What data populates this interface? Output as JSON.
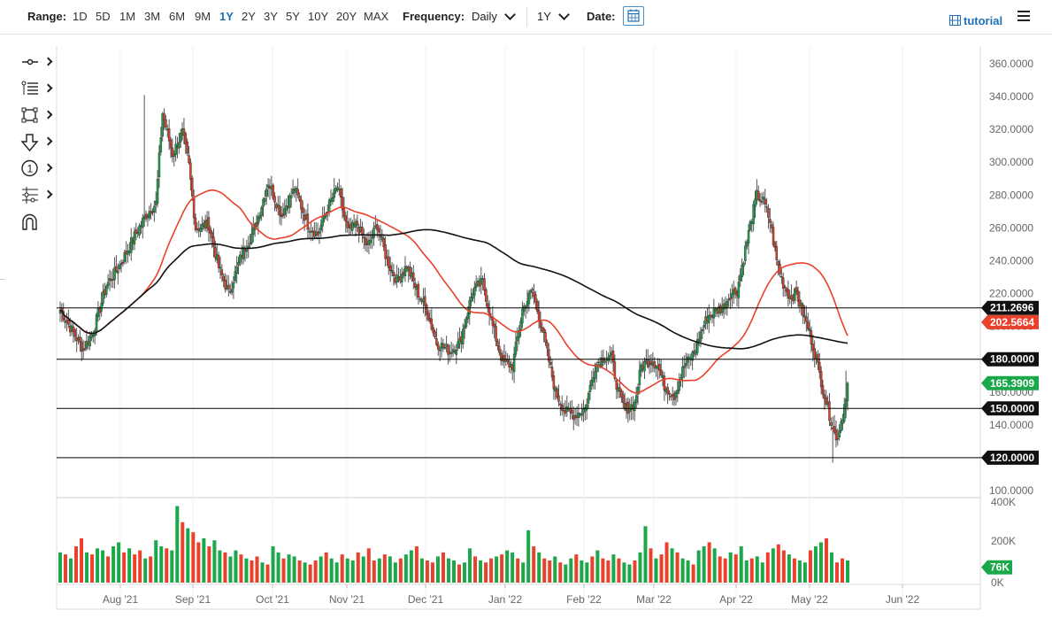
{
  "toolbar": {
    "range_label": "Range:",
    "ranges": [
      "1D",
      "5D",
      "1M",
      "3M",
      "6M",
      "9M",
      "1Y",
      "2Y",
      "3Y",
      "5Y",
      "10Y",
      "20Y",
      "MAX"
    ],
    "active_range": "1Y",
    "frequency_label": "Frequency:",
    "frequency_value": "Daily",
    "period_value": "1Y",
    "date_label": "Date:",
    "tutorial_label": "tutorial"
  },
  "left_tools": [
    {
      "name": "crosshair-tool-icon"
    },
    {
      "name": "line-study-tool-icon"
    },
    {
      "name": "shape-tool-icon"
    },
    {
      "name": "arrow-down-tool-icon"
    },
    {
      "name": "annotation-number-tool-icon"
    },
    {
      "name": "fibonacci-tool-icon"
    },
    {
      "name": "magnet-tool-icon"
    }
  ],
  "chart_data": {
    "type": "candlestick",
    "price_axis": {
      "ticks": [
        "360.0000",
        "340.0000",
        "320.0000",
        "300.0000",
        "280.0000",
        "260.0000",
        "240.0000",
        "220.0000",
        "200.0000",
        "180.0000",
        "160.0000",
        "140.0000",
        "120.0000",
        "100.0000"
      ],
      "range": [
        100,
        360
      ]
    },
    "time_axis": {
      "ticks": [
        "Aug '21",
        "Sep '21",
        "Oct '21",
        "Nov '21",
        "Dec '21",
        "Jan '22",
        "Feb '22",
        "Mar '22",
        "Apr '22",
        "May '22",
        "Jun '22"
      ]
    },
    "volume_axis": {
      "ticks": [
        "400K",
        "200K",
        "0K"
      ],
      "range": [
        0,
        400000
      ]
    },
    "horizontal_lines": [
      {
        "label": "211.2696",
        "value": 211.27,
        "color": "#000000"
      },
      {
        "label": "180.0000",
        "value": 180,
        "color": "#000000"
      },
      {
        "label": "150.0000",
        "value": 150,
        "color": "#000000"
      },
      {
        "label": "120.0000",
        "value": 120,
        "color": "#000000"
      }
    ],
    "price_tags": [
      {
        "label": "211.2696",
        "value": 211.27,
        "color": "#111111"
      },
      {
        "label": "202.5664",
        "value": 202.57,
        "color": "#e8412c"
      },
      {
        "label": "180.0000",
        "value": 180,
        "color": "#111111"
      },
      {
        "label": "165.3909",
        "value": 165.39,
        "color": "#1aa84b"
      },
      {
        "label": "150.0000",
        "value": 150,
        "color": "#111111"
      },
      {
        "label": "120.0000",
        "value": 120,
        "color": "#111111"
      }
    ],
    "volume_tag": {
      "label": "76K",
      "value": 76000,
      "color": "#1aa84b"
    },
    "up_color": "#1aa84b",
    "down_color": "#e8412c",
    "ma_fast_color": "#e8412c",
    "ma_slow_color": "#111111",
    "anchors": [
      [
        0,
        210
      ],
      [
        8,
        196
      ],
      [
        14,
        186
      ],
      [
        20,
        197
      ],
      [
        28,
        225
      ],
      [
        36,
        237
      ],
      [
        44,
        253
      ],
      [
        52,
        268
      ],
      [
        58,
        275
      ],
      [
        62,
        330
      ],
      [
        68,
        305
      ],
      [
        74,
        318
      ],
      [
        78,
        298
      ],
      [
        82,
        260
      ],
      [
        90,
        262
      ],
      [
        96,
        236
      ],
      [
        102,
        220
      ],
      [
        110,
        244
      ],
      [
        118,
        260
      ],
      [
        126,
        288
      ],
      [
        134,
        268
      ],
      [
        142,
        284
      ],
      [
        150,
        262
      ],
      [
        156,
        256
      ],
      [
        162,
        272
      ],
      [
        168,
        285
      ],
      [
        174,
        258
      ],
      [
        180,
        262
      ],
      [
        186,
        248
      ],
      [
        192,
        262
      ],
      [
        198,
        240
      ],
      [
        204,
        228
      ],
      [
        210,
        237
      ],
      [
        216,
        222
      ],
      [
        222,
        210
      ],
      [
        228,
        190
      ],
      [
        236,
        185
      ],
      [
        242,
        190
      ],
      [
        250,
        222
      ],
      [
        256,
        227
      ],
      [
        262,
        200
      ],
      [
        268,
        178
      ],
      [
        274,
        176
      ],
      [
        280,
        210
      ],
      [
        286,
        222
      ],
      [
        292,
        198
      ],
      [
        300,
        160
      ],
      [
        306,
        148
      ],
      [
        312,
        146
      ],
      [
        318,
        150
      ],
      [
        324,
        176
      ],
      [
        330,
        182
      ],
      [
        334,
        181
      ],
      [
        338,
        160
      ],
      [
        342,
        149
      ],
      [
        348,
        153
      ],
      [
        352,
        176
      ],
      [
        358,
        180
      ],
      [
        362,
        176
      ],
      [
        366,
        164
      ],
      [
        372,
        158
      ],
      [
        378,
        176
      ],
      [
        384,
        184
      ],
      [
        388,
        196
      ],
      [
        392,
        206
      ],
      [
        398,
        210
      ],
      [
        402,
        212
      ],
      [
        406,
        220
      ],
      [
        410,
        222
      ],
      [
        414,
        242
      ],
      [
        418,
        262
      ],
      [
        422,
        280
      ],
      [
        426,
        276
      ],
      [
        430,
        264
      ],
      [
        434,
        240
      ],
      [
        438,
        226
      ],
      [
        442,
        218
      ],
      [
        446,
        220
      ],
      [
        450,
        208
      ],
      [
        454,
        196
      ],
      [
        458,
        180
      ],
      [
        462,
        162
      ],
      [
        466,
        146
      ],
      [
        468,
        140
      ],
      [
        470,
        130
      ],
      [
        474,
        146
      ],
      [
        477,
        165.39
      ]
    ],
    "volume_pattern": [
      150,
      140,
      120,
      180,
      220,
      150,
      140,
      170,
      160,
      130,
      180,
      200,
      150,
      170,
      140,
      160,
      120,
      130,
      210,
      180,
      170,
      160,
      380,
      300,
      270,
      250,
      200,
      220,
      180,
      210,
      160,
      150,
      130,
      160,
      140,
      120,
      110,
      130,
      100,
      90,
      180,
      150,
      120,
      140,
      130,
      110,
      100,
      90,
      110,
      130,
      150,
      120,
      100,
      140,
      120,
      110,
      150,
      130,
      170,
      110,
      120,
      140,
      130,
      100,
      120,
      140,
      160,
      180,
      120,
      110,
      100,
      130,
      150,
      120,
      110,
      90,
      100,
      170,
      130,
      110,
      100,
      120,
      130,
      140,
      160,
      150,
      120,
      100,
      260,
      180,
      150,
      120,
      110,
      130,
      100,
      90,
      120,
      140,
      110,
      100,
      130,
      160,
      120,
      110,
      140,
      120,
      100,
      90,
      110,
      150,
      280,
      170,
      120,
      140,
      200,
      170,
      150,
      120,
      110,
      90,
      160,
      180,
      200,
      170,
      130,
      120,
      150,
      140,
      180,
      110,
      120,
      130,
      100,
      150,
      170,
      190,
      160,
      140,
      120,
      110,
      100,
      160,
      180,
      200,
      220,
      150,
      100,
      120,
      110
    ]
  }
}
